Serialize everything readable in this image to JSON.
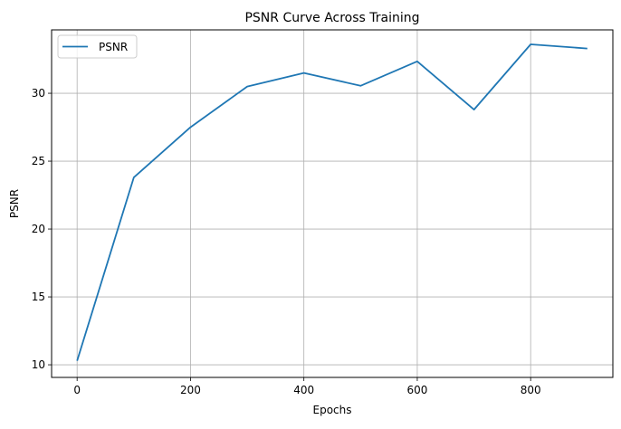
{
  "chart_data": {
    "type": "line",
    "title": "PSNR Curve Across Training",
    "xlabel": "Epochs",
    "ylabel": "PSNR",
    "x": [
      0,
      100,
      200,
      300,
      400,
      500,
      600,
      700,
      800,
      900
    ],
    "series": [
      {
        "name": "PSNR",
        "color": "#1f77b4",
        "values": [
          10.3,
          23.8,
          27.5,
          30.5,
          31.5,
          30.55,
          32.35,
          28.8,
          33.6,
          33.3
        ]
      }
    ],
    "xticks": [
      0,
      200,
      400,
      600,
      800
    ],
    "yticks": [
      10,
      15,
      20,
      25,
      30
    ],
    "xlim": [
      -45,
      945
    ],
    "ylim": [
      9.07,
      34.67
    ],
    "grid": true,
    "legend_position": "upper left"
  }
}
